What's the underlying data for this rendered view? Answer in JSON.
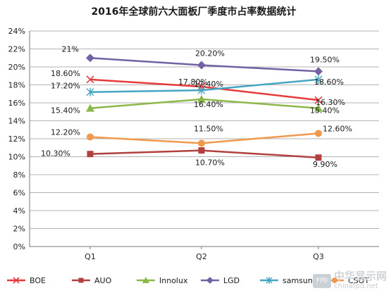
{
  "chart_data": {
    "type": "line",
    "title": "2016年全球前六大面板厂季度市占率数据统计",
    "categories": [
      "Q1",
      "Q2",
      "Q3"
    ],
    "ylim": [
      0,
      24
    ],
    "yticks": [
      0,
      2,
      4,
      6,
      8,
      10,
      12,
      14,
      16,
      18,
      20,
      22,
      24
    ],
    "ytick_labels": [
      "0%",
      "2%",
      "4%",
      "6%",
      "8%",
      "10%",
      "12%",
      "14%",
      "16%",
      "18%",
      "20%",
      "22%",
      "24%"
    ],
    "grid": "horizontal",
    "legend_position": "bottom",
    "series": [
      {
        "name": "BOE",
        "values": [
          18.6,
          17.8,
          16.3
        ],
        "color": "#e8393b",
        "marker": "x"
      },
      {
        "name": "AUO",
        "values": [
          10.3,
          10.7,
          9.9
        ],
        "color": "#b0413e",
        "marker": "square"
      },
      {
        "name": "Innolux",
        "values": [
          15.4,
          16.4,
          15.4
        ],
        "color": "#8cb84a",
        "marker": "triangle"
      },
      {
        "name": "LGD",
        "values": [
          21.0,
          20.2,
          19.5
        ],
        "color": "#7262a3",
        "marker": "diamond"
      },
      {
        "name": "samsung",
        "values": [
          17.2,
          17.4,
          18.6
        ],
        "color": "#44a6c2",
        "marker": "star"
      },
      {
        "name": "CSOT",
        "values": [
          12.2,
          11.5,
          12.6
        ],
        "color": "#f0984c",
        "marker": "circle"
      }
    ],
    "data_labels": [
      {
        "text": "21%",
        "series": "LGD",
        "point": 0
      },
      {
        "text": "20.20%",
        "series": "LGD",
        "point": 1
      },
      {
        "text": "19.50%",
        "series": "LGD",
        "point": 2
      },
      {
        "text": "17.20%",
        "series": "samsung",
        "point": 0
      },
      {
        "text": "17.40%",
        "series": "samsung",
        "point": 1
      },
      {
        "text": "16.30%",
        "series": "BOE",
        "point": 2
      },
      {
        "text": "18.60%",
        "series": "BOE",
        "point": 0
      },
      {
        "text": "17.80%",
        "series": "BOE",
        "point": 1
      },
      {
        "text": "18.60%",
        "series": "samsung",
        "point": 2
      },
      {
        "text": "15.40%",
        "series": "Innolux",
        "point": 0
      },
      {
        "text": "16.40%",
        "series": "Innolux",
        "point": 1
      },
      {
        "text": "15.40%",
        "series": "Innolux",
        "point": 2
      },
      {
        "text": "12.20%",
        "series": "CSOT",
        "point": 0
      },
      {
        "text": "11.50%",
        "series": "CSOT",
        "point": 1
      },
      {
        "text": "12.60%",
        "series": "CSOT",
        "point": 2
      },
      {
        "text": "10.30%",
        "series": "AUO",
        "point": 0
      },
      {
        "text": "10.70%",
        "series": "AUO",
        "point": 1
      },
      {
        "text": "9.90%",
        "series": "AUO",
        "point": 2
      }
    ]
  },
  "watermark": {
    "badge": "FPD",
    "name": "中华显示网",
    "url": "chinafpd.net"
  }
}
